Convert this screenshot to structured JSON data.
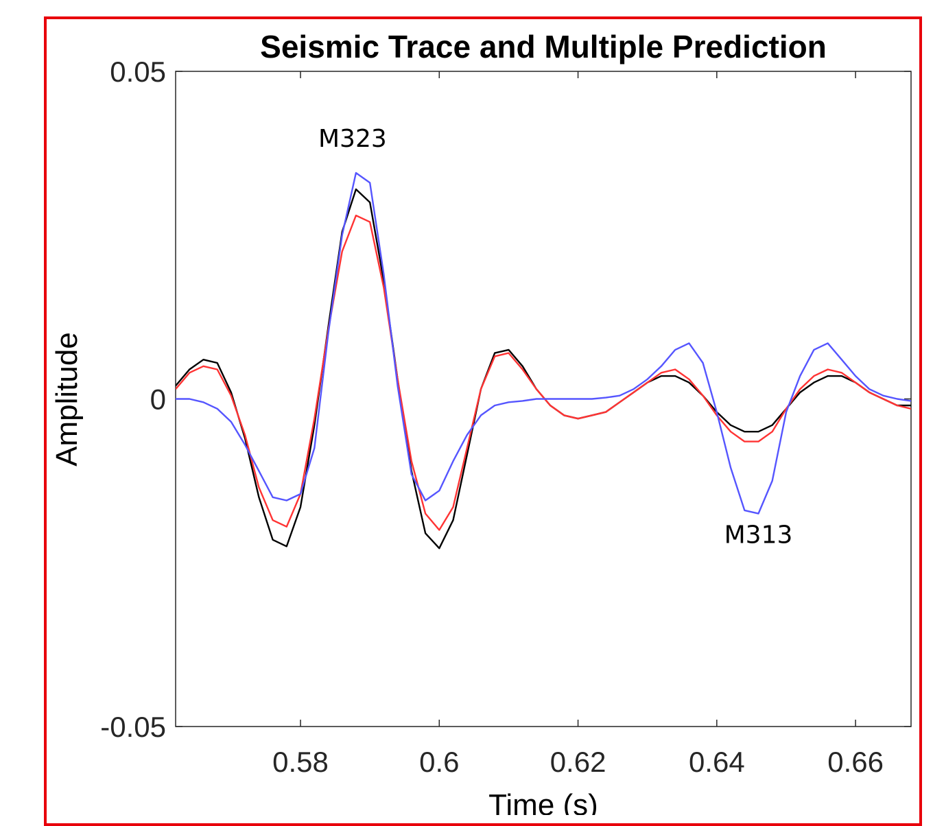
{
  "chart_data": {
    "type": "line",
    "title": "Seismic Trace and Multiple Prediction",
    "xlabel": "Time (s)",
    "ylabel": "Amplitude",
    "xlim": [
      0.562,
      0.668
    ],
    "ylim": [
      -0.05,
      0.05
    ],
    "xticks": [
      0.58,
      0.6,
      0.62,
      0.64,
      0.66
    ],
    "xtick_labels": [
      "0.58",
      "0.6",
      "0.62",
      "0.64",
      "0.66"
    ],
    "yticks": [
      -0.05,
      0,
      0.05
    ],
    "ytick_labels": [
      "-0.05",
      "0",
      "0.05"
    ],
    "grid": false,
    "annotations": [
      {
        "text": "M323",
        "x": 0.5875,
        "y": 0.0385
      },
      {
        "text": "M313",
        "x": 0.646,
        "y": -0.022
      }
    ],
    "series": [
      {
        "color": "#000000",
        "x": [
          0.562,
          0.564,
          0.566,
          0.568,
          0.57,
          0.572,
          0.574,
          0.576,
          0.578,
          0.58,
          0.582,
          0.584,
          0.586,
          0.588,
          0.59,
          0.592,
          0.594,
          0.596,
          0.598,
          0.6,
          0.602,
          0.604,
          0.606,
          0.608,
          0.61,
          0.612,
          0.614,
          0.616,
          0.618,
          0.62,
          0.622,
          0.624,
          0.626,
          0.628,
          0.63,
          0.632,
          0.634,
          0.636,
          0.638,
          0.64,
          0.642,
          0.644,
          0.646,
          0.648,
          0.65,
          0.652,
          0.654,
          0.656,
          0.658,
          0.66,
          0.662,
          0.664,
          0.666,
          0.668
        ],
        "y": [
          0.002,
          0.0045,
          0.006,
          0.0055,
          0.001,
          -0.006,
          -0.015,
          -0.0215,
          -0.0225,
          -0.0165,
          -0.004,
          0.011,
          0.0255,
          0.032,
          0.03,
          0.018,
          0.003,
          -0.011,
          -0.0205,
          -0.0228,
          -0.0185,
          -0.0085,
          0.0015,
          0.007,
          0.0075,
          0.005,
          0.0015,
          -0.001,
          -0.0025,
          -0.003,
          -0.0025,
          -0.002,
          -0.0005,
          0.001,
          0.0025,
          0.0035,
          0.0035,
          0.0025,
          0.0005,
          -0.002,
          -0.004,
          -0.005,
          -0.005,
          -0.004,
          -0.0015,
          0.001,
          0.0025,
          0.0035,
          0.0035,
          0.0025,
          0.001,
          0.0,
          -0.001,
          -0.001
        ]
      },
      {
        "color": "#ff3333",
        "x": [
          0.562,
          0.564,
          0.566,
          0.568,
          0.57,
          0.572,
          0.574,
          0.576,
          0.578,
          0.58,
          0.582,
          0.584,
          0.586,
          0.588,
          0.59,
          0.592,
          0.594,
          0.596,
          0.598,
          0.6,
          0.602,
          0.604,
          0.606,
          0.608,
          0.61,
          0.612,
          0.614,
          0.616,
          0.618,
          0.62,
          0.622,
          0.624,
          0.626,
          0.628,
          0.63,
          0.632,
          0.634,
          0.636,
          0.638,
          0.64,
          0.642,
          0.644,
          0.646,
          0.648,
          0.65,
          0.652,
          0.654,
          0.656,
          0.658,
          0.66,
          0.662,
          0.664,
          0.666,
          0.668
        ],
        "y": [
          0.0015,
          0.004,
          0.005,
          0.0045,
          0.0005,
          -0.0055,
          -0.0135,
          -0.0185,
          -0.0195,
          -0.0145,
          -0.003,
          0.0105,
          0.0225,
          0.028,
          0.027,
          0.017,
          0.003,
          -0.0095,
          -0.0175,
          -0.02,
          -0.0165,
          -0.0075,
          0.0015,
          0.0065,
          0.007,
          0.0045,
          0.0015,
          -0.001,
          -0.0025,
          -0.003,
          -0.0025,
          -0.002,
          -0.0005,
          0.001,
          0.0025,
          0.004,
          0.0045,
          0.003,
          0.0005,
          -0.0025,
          -0.005,
          -0.0065,
          -0.0065,
          -0.005,
          -0.0015,
          0.0015,
          0.0035,
          0.0045,
          0.004,
          0.0025,
          0.001,
          0.0,
          -0.001,
          -0.0015
        ]
      },
      {
        "color": "#5555ff",
        "x": [
          0.562,
          0.564,
          0.566,
          0.568,
          0.57,
          0.572,
          0.574,
          0.576,
          0.578,
          0.58,
          0.582,
          0.584,
          0.586,
          0.588,
          0.59,
          0.592,
          0.594,
          0.596,
          0.598,
          0.6,
          0.602,
          0.604,
          0.606,
          0.608,
          0.61,
          0.612,
          0.614,
          0.616,
          0.618,
          0.62,
          0.622,
          0.624,
          0.626,
          0.628,
          0.63,
          0.632,
          0.634,
          0.636,
          0.638,
          0.64,
          0.642,
          0.644,
          0.646,
          0.648,
          0.65,
          0.652,
          0.654,
          0.656,
          0.658,
          0.66,
          0.662,
          0.664,
          0.666,
          0.668
        ],
        "y": [
          0.0,
          0.0,
          -0.0005,
          -0.0015,
          -0.0035,
          -0.007,
          -0.011,
          -0.015,
          -0.0155,
          -0.0145,
          -0.0075,
          0.01,
          0.025,
          0.0345,
          0.033,
          0.019,
          0.002,
          -0.0115,
          -0.0155,
          -0.014,
          -0.0095,
          -0.0055,
          -0.0025,
          -0.001,
          -0.0005,
          -0.0003,
          0.0,
          0.0,
          0.0,
          0.0,
          0.0,
          0.0002,
          0.0005,
          0.0015,
          0.003,
          0.005,
          0.0075,
          0.0085,
          0.0055,
          -0.002,
          -0.0105,
          -0.017,
          -0.0175,
          -0.0125,
          -0.002,
          0.0035,
          0.0075,
          0.0085,
          0.006,
          0.0035,
          0.0015,
          0.0005,
          0.0,
          -0.0003
        ]
      }
    ]
  }
}
